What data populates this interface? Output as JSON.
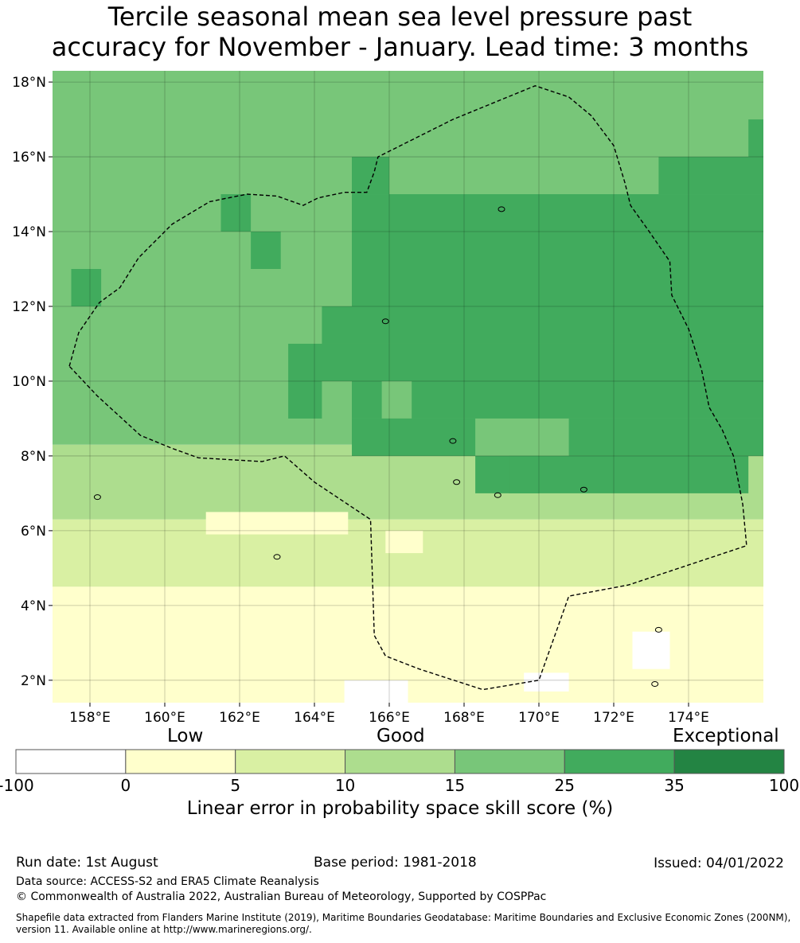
{
  "title": {
    "line1": "Tercile seasonal mean sea level pressure past",
    "line2": "accuracy for November - January. Lead time: 3 months"
  },
  "map": {
    "lon_range": [
      157.0,
      176.0
    ],
    "lat_range": [
      1.4,
      18.3
    ],
    "lon_ticks": [
      {
        "value": 158,
        "label": "158°E"
      },
      {
        "value": 160,
        "label": "160°E"
      },
      {
        "value": 162,
        "label": "162°E"
      },
      {
        "value": 164,
        "label": "164°E"
      },
      {
        "value": 166,
        "label": "166°E"
      },
      {
        "value": 168,
        "label": "168°E"
      },
      {
        "value": 170,
        "label": "170°E"
      },
      {
        "value": 172,
        "label": "172°E"
      },
      {
        "value": 174,
        "label": "174°E"
      }
    ],
    "lat_ticks": [
      {
        "value": 18,
        "label": "18°N"
      },
      {
        "value": 16,
        "label": "16°N"
      },
      {
        "value": 14,
        "label": "14°N"
      },
      {
        "value": 12,
        "label": "12°N"
      },
      {
        "value": 10,
        "label": "10°N"
      },
      {
        "value": 8,
        "label": "8°N"
      },
      {
        "value": 6,
        "label": "6°N"
      },
      {
        "value": 4,
        "label": "4°N"
      },
      {
        "value": 2,
        "label": "2°N"
      }
    ],
    "gridlines": true,
    "boundary_style": "dashed",
    "boundary_lonlat": [
      [
        157.45,
        10.4
      ],
      [
        157.7,
        11.3
      ],
      [
        158.25,
        12.1
      ],
      [
        158.8,
        12.5
      ],
      [
        159.3,
        13.3
      ],
      [
        160.2,
        14.2
      ],
      [
        161.2,
        14.8
      ],
      [
        162.2,
        15.0
      ],
      [
        163.0,
        14.95
      ],
      [
        163.7,
        14.7
      ],
      [
        164.1,
        14.9
      ],
      [
        164.8,
        15.05
      ],
      [
        165.4,
        15.05
      ],
      [
        165.6,
        15.6
      ],
      [
        165.7,
        16.0
      ],
      [
        167.7,
        17.0
      ],
      [
        169.9,
        17.9
      ],
      [
        170.8,
        17.6
      ],
      [
        171.4,
        17.1
      ],
      [
        172.0,
        16.3
      ],
      [
        172.3,
        15.3
      ],
      [
        172.45,
        14.7
      ],
      [
        172.95,
        14.0
      ],
      [
        173.5,
        13.2
      ],
      [
        173.55,
        12.3
      ],
      [
        174.0,
        11.4
      ],
      [
        174.35,
        10.3
      ],
      [
        174.55,
        9.3
      ],
      [
        174.9,
        8.7
      ],
      [
        175.2,
        8.0
      ],
      [
        175.45,
        6.7
      ],
      [
        175.55,
        5.6
      ],
      [
        172.4,
        4.55
      ],
      [
        170.8,
        4.25
      ],
      [
        170.0,
        2.0
      ],
      [
        168.5,
        1.75
      ],
      [
        166.8,
        2.3
      ],
      [
        165.9,
        2.65
      ],
      [
        165.6,
        3.2
      ],
      [
        165.5,
        6.3
      ],
      [
        164.0,
        7.3
      ],
      [
        163.2,
        8.0
      ],
      [
        162.6,
        7.85
      ],
      [
        160.9,
        7.95
      ],
      [
        160.2,
        8.2
      ],
      [
        159.35,
        8.55
      ],
      [
        158.2,
        9.6
      ],
      [
        157.45,
        10.4
      ]
    ],
    "land_lonlat": [
      [
        158.2,
        6.9
      ],
      [
        165.9,
        11.6
      ],
      [
        167.8,
        7.3
      ],
      [
        168.9,
        6.95
      ],
      [
        171.2,
        7.1
      ],
      [
        173.2,
        3.35
      ],
      [
        173.1,
        1.9
      ],
      [
        163.0,
        5.3
      ],
      [
        167.7,
        8.4
      ],
      [
        169.0,
        14.6
      ]
    ],
    "skill_cells_note": "1-degree grid cells, row-major from north (18N) southward, values are skill score %",
    "skill_cells": [
      {
        "lat": 18,
        "lon0": 157,
        "lon1": 176,
        "v": 20
      },
      {
        "lat": 17,
        "lon0": 157,
        "lon1": 176,
        "v": 20
      },
      {
        "lat": 17,
        "lon0": 175.6,
        "lon1": 176,
        "v": 30
      },
      {
        "lat": 16,
        "lon0": 165,
        "lon1": 166,
        "v": 30
      },
      {
        "lat": 16,
        "lon0": 173.2,
        "lon1": 176,
        "v": 30
      },
      {
        "lat": 15,
        "lon0": 161.5,
        "lon1": 162.3,
        "v": 30
      },
      {
        "lat": 15,
        "lon0": 165,
        "lon1": 176,
        "v": 30
      },
      {
        "lat": 14,
        "lon0": 162.3,
        "lon1": 163.1,
        "v": 30
      },
      {
        "lat": 14,
        "lon0": 165,
        "lon1": 176,
        "v": 30
      },
      {
        "lat": 13,
        "lon0": 157.5,
        "lon1": 158.3,
        "v": 30
      },
      {
        "lat": 13,
        "lon0": 165,
        "lon1": 176,
        "v": 30
      },
      {
        "lat": 12,
        "lon0": 164.2,
        "lon1": 176,
        "v": 30
      },
      {
        "lat": 11,
        "lon0": 163.3,
        "lon1": 176,
        "v": 30
      },
      {
        "lat": 10,
        "lon0": 163.3,
        "lon1": 164.2,
        "v": 30
      },
      {
        "lat": 10,
        "lon0": 165,
        "lon1": 176,
        "v": 30
      },
      {
        "lat": 10,
        "lon0": 165.8,
        "lon1": 166.6,
        "v": 20
      },
      {
        "lat": 9,
        "lon0": 165,
        "lon1": 176,
        "v": 30
      },
      {
        "lat": 9,
        "lon0": 168.3,
        "lon1": 170.8,
        "v": 20
      },
      {
        "lat": 8,
        "lon0": 168.3,
        "lon1": 175.6,
        "v": 30
      },
      {
        "lat": 8,
        "lon0": 169.2,
        "lon1": 170,
        "v": 30
      }
    ]
  },
  "colorbar": {
    "head_labels": {
      "low": "Low",
      "good": "Good",
      "exceptional": "Exceptional"
    },
    "bounds": [
      "-100",
      "0",
      "5",
      "10",
      "15",
      "25",
      "35",
      "100"
    ],
    "colors": [
      "#ffffff",
      "#ffffcc",
      "#d9f0a3",
      "#addd8e",
      "#78c679",
      "#41ab5d",
      "#238443"
    ],
    "title": "Linear error in probability space skill score (%)"
  },
  "footer": {
    "run_date": "Run date: 1st August",
    "base_period": "Base period: 1981-2018",
    "issued": "Issued: 04/01/2022",
    "data_source": "Data source: ACCESS-S2 and ERA5 Climate Reanalysis",
    "copyright": "© Commonwealth of Australia 2022, Australian Bureau of Meteorology, Supported by COSPPac",
    "shapefile": "Shapefile data extracted from Flanders Marine Institute (2019), Maritime Boundaries Geodatabase: Maritime Boundaries and Exclusive Economic Zones (200NM), version 11. Available online at http://www.marineregions.org/."
  }
}
